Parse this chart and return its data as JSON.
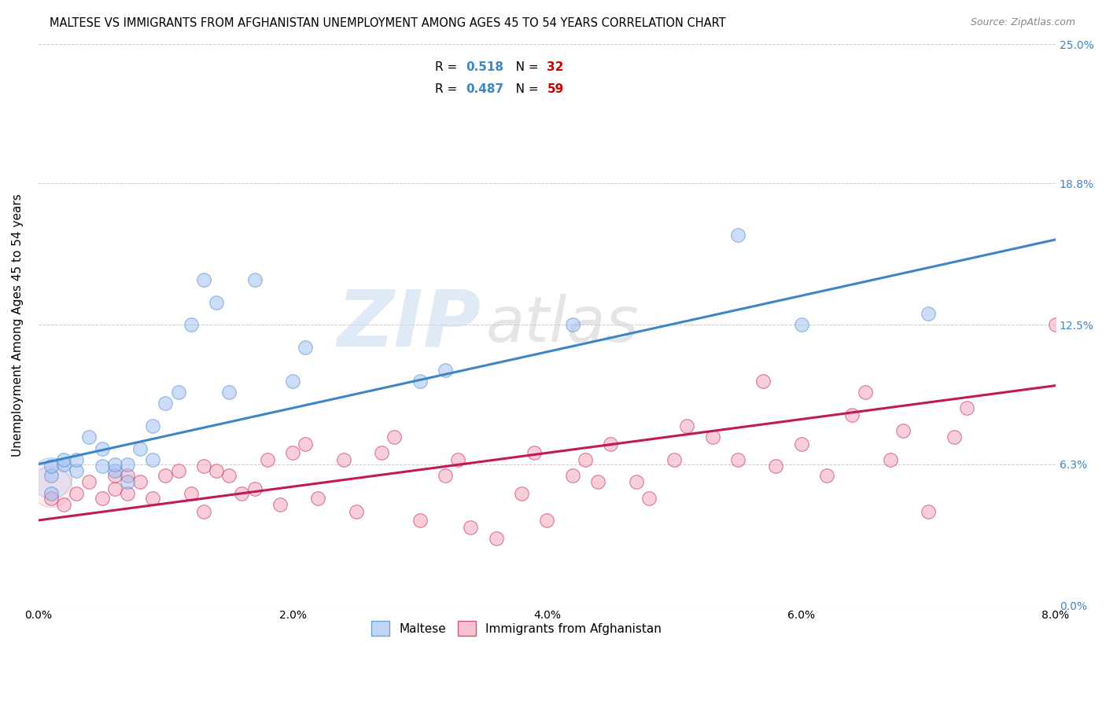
{
  "title": "MALTESE VS IMMIGRANTS FROM AFGHANISTAN UNEMPLOYMENT AMONG AGES 45 TO 54 YEARS CORRELATION CHART",
  "source": "Source: ZipAtlas.com",
  "ylabel": "Unemployment Among Ages 45 to 54 years",
  "xtick_labels": [
    "0.0%",
    "2.0%",
    "4.0%",
    "6.0%",
    "8.0%"
  ],
  "xtick_vals": [
    0.0,
    0.02,
    0.04,
    0.06,
    0.08
  ],
  "ytick_labels": [
    "0.0%",
    "6.3%",
    "12.5%",
    "18.8%",
    "25.0%"
  ],
  "ytick_vals": [
    0.0,
    0.063,
    0.125,
    0.188,
    0.25
  ],
  "xlim": [
    0.0,
    0.08
  ],
  "ylim": [
    0.0,
    0.25
  ],
  "legend1_R": "0.518",
  "legend1_N": "32",
  "legend2_R": "0.487",
  "legend2_N": "59",
  "color_blue_fill": "#a4c2f4",
  "color_pink_fill": "#f4a7b9",
  "color_blue_edge": "#3d85c8",
  "color_pink_edge": "#c2185b",
  "color_blue_line": "#3d85c8",
  "color_pink_line": "#c2185b",
  "watermark_big": "ZIP",
  "watermark_small": "atlas",
  "blue_line_x": [
    0.0,
    0.08
  ],
  "blue_line_y": [
    0.063,
    0.163
  ],
  "pink_line_x": [
    0.0,
    0.08
  ],
  "pink_line_y": [
    0.038,
    0.098
  ],
  "maltese_x": [
    0.001,
    0.001,
    0.001,
    0.002,
    0.002,
    0.003,
    0.003,
    0.004,
    0.005,
    0.005,
    0.006,
    0.006,
    0.007,
    0.007,
    0.008,
    0.009,
    0.009,
    0.01,
    0.011,
    0.012,
    0.013,
    0.014,
    0.015,
    0.017,
    0.02,
    0.021,
    0.03,
    0.032,
    0.042,
    0.055,
    0.06,
    0.07
  ],
  "maltese_y": [
    0.05,
    0.058,
    0.062,
    0.063,
    0.065,
    0.06,
    0.065,
    0.075,
    0.062,
    0.07,
    0.06,
    0.063,
    0.055,
    0.063,
    0.07,
    0.065,
    0.08,
    0.09,
    0.095,
    0.125,
    0.145,
    0.135,
    0.095,
    0.145,
    0.1,
    0.115,
    0.1,
    0.105,
    0.125,
    0.165,
    0.125,
    0.13
  ],
  "afghan_x": [
    0.001,
    0.002,
    0.003,
    0.004,
    0.005,
    0.006,
    0.006,
    0.007,
    0.007,
    0.008,
    0.009,
    0.01,
    0.011,
    0.012,
    0.013,
    0.013,
    0.014,
    0.015,
    0.016,
    0.017,
    0.018,
    0.019,
    0.02,
    0.021,
    0.022,
    0.024,
    0.025,
    0.027,
    0.028,
    0.03,
    0.032,
    0.033,
    0.034,
    0.036,
    0.038,
    0.039,
    0.04,
    0.042,
    0.043,
    0.044,
    0.045,
    0.047,
    0.048,
    0.05,
    0.051,
    0.053,
    0.055,
    0.057,
    0.058,
    0.06,
    0.062,
    0.064,
    0.065,
    0.067,
    0.068,
    0.07,
    0.072,
    0.073,
    0.08
  ],
  "afghan_y": [
    0.048,
    0.045,
    0.05,
    0.055,
    0.048,
    0.052,
    0.058,
    0.05,
    0.058,
    0.055,
    0.048,
    0.058,
    0.06,
    0.05,
    0.042,
    0.062,
    0.06,
    0.058,
    0.05,
    0.052,
    0.065,
    0.045,
    0.068,
    0.072,
    0.048,
    0.065,
    0.042,
    0.068,
    0.075,
    0.038,
    0.058,
    0.065,
    0.035,
    0.03,
    0.05,
    0.068,
    0.038,
    0.058,
    0.065,
    0.055,
    0.072,
    0.055,
    0.048,
    0.065,
    0.08,
    0.075,
    0.065,
    0.1,
    0.062,
    0.072,
    0.058,
    0.085,
    0.095,
    0.065,
    0.078,
    0.042,
    0.075,
    0.088,
    0.125
  ],
  "cluster_blue_x": [
    0.001
  ],
  "cluster_blue_y": [
    0.057
  ],
  "cluster_pink_x": [
    0.001
  ],
  "cluster_pink_y": [
    0.053
  ]
}
